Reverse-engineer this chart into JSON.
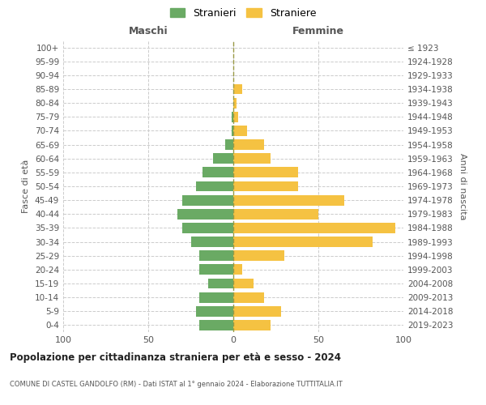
{
  "age_groups": [
    "0-4",
    "5-9",
    "10-14",
    "15-19",
    "20-24",
    "25-29",
    "30-34",
    "35-39",
    "40-44",
    "45-49",
    "50-54",
    "55-59",
    "60-64",
    "65-69",
    "70-74",
    "75-79",
    "80-84",
    "85-89",
    "90-94",
    "95-99",
    "100+"
  ],
  "birth_years": [
    "2019-2023",
    "2014-2018",
    "2009-2013",
    "2004-2008",
    "1999-2003",
    "1994-1998",
    "1989-1993",
    "1984-1988",
    "1979-1983",
    "1974-1978",
    "1969-1973",
    "1964-1968",
    "1959-1963",
    "1954-1958",
    "1949-1953",
    "1944-1948",
    "1939-1943",
    "1934-1938",
    "1929-1933",
    "1924-1928",
    "≤ 1923"
  ],
  "males": [
    20,
    22,
    20,
    15,
    20,
    20,
    25,
    30,
    33,
    30,
    22,
    18,
    12,
    5,
    1,
    1,
    0,
    0,
    0,
    0,
    0
  ],
  "females": [
    22,
    28,
    18,
    12,
    5,
    30,
    82,
    95,
    50,
    65,
    38,
    38,
    22,
    18,
    8,
    3,
    2,
    5,
    0,
    0,
    0
  ],
  "male_color": "#6aaa64",
  "female_color": "#f5c242",
  "title": "Popolazione per cittadinanza straniera per età e sesso - 2024",
  "subtitle": "COMUNE DI CASTEL GANDOLFO (RM) - Dati ISTAT al 1° gennaio 2024 - Elaborazione TUTTITALIA.IT",
  "xlabel_left": "Maschi",
  "xlabel_right": "Femmine",
  "ylabel_left": "Fasce di età",
  "ylabel_right": "Anni di nascita",
  "legend_male": "Stranieri",
  "legend_female": "Straniere",
  "xlim": 100,
  "bg_color": "#ffffff",
  "grid_color": "#cccccc",
  "center_line_color": "#999944",
  "text_color": "#555555",
  "axis_label_color": "#555555"
}
